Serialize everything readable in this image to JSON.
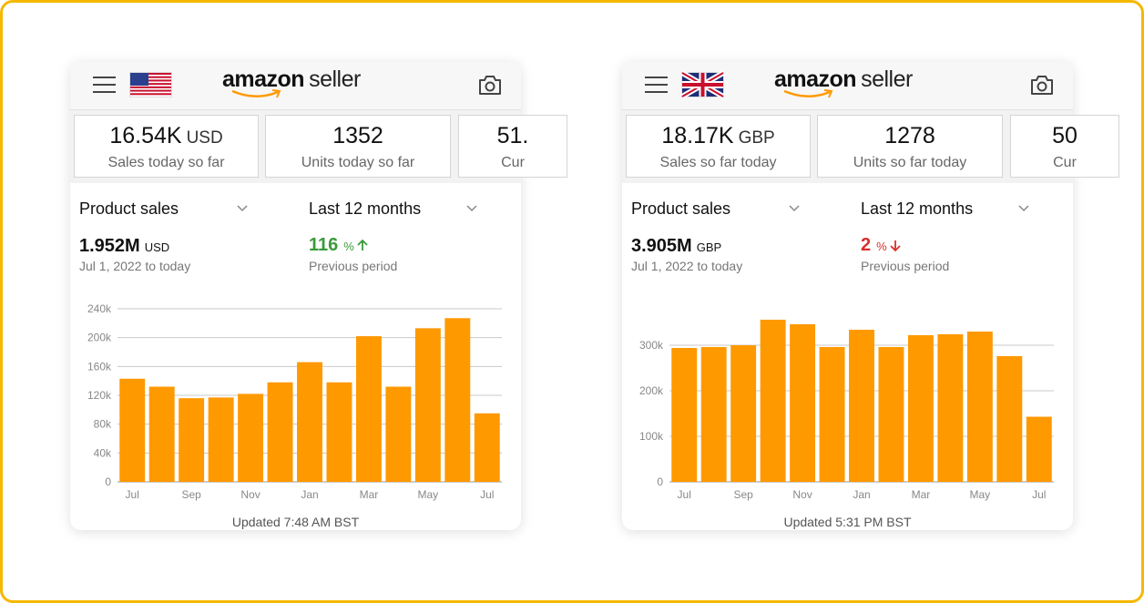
{
  "panels": [
    {
      "logo_brand": "amazon",
      "logo_product": "seller",
      "stats": [
        {
          "value": "16.54K",
          "unit": "USD",
          "label": "Sales today so far"
        },
        {
          "value": "1352",
          "label": "Units today so far"
        },
        {
          "value": "51.",
          "label": "Cur"
        }
      ],
      "metric": "Product sales",
      "period": "Last 12 months",
      "total": {
        "value": "1.952M",
        "unit": "USD",
        "range": "Jul 1, 2022 to today"
      },
      "change": {
        "value": "116",
        "unit": "%",
        "label": "Previous period",
        "color": "#3a9a3a"
      },
      "updated": "Updated 7:48 AM BST"
    },
    {
      "logo_brand": "amazon",
      "logo_product": "seller",
      "stats": [
        {
          "value": "18.17K",
          "unit": "GBP",
          "label": "Sales so far today"
        },
        {
          "value": "1278",
          "label": "Units so far today"
        },
        {
          "value": "50",
          "label": "Cur"
        }
      ],
      "metric": "Product sales",
      "period": "Last 12 months",
      "total": {
        "value": "3.905M",
        "unit": "GBP",
        "range": "Jul 1, 2022 to today"
      },
      "change": {
        "value": "2",
        "unit": "%",
        "label": "Previous period",
        "color": "#d9302c"
      },
      "updated": "Updated 5:31 PM BST"
    }
  ],
  "chart_data": [
    {
      "type": "bar",
      "categories": [
        "Jul",
        null,
        "Sep",
        null,
        "Nov",
        null,
        "Jan",
        null,
        "Mar",
        null,
        "May",
        null,
        "Jul"
      ],
      "values": [
        143000,
        132000,
        116000,
        117000,
        122000,
        138000,
        166000,
        138000,
        202000,
        132000,
        213000,
        227000,
        95000
      ],
      "color": "#ff9900",
      "ylim": [
        0,
        240000
      ],
      "yticks": [
        0,
        {
          "value": 40000,
          "label": "40k"
        },
        {
          "value": 80000,
          "label": "80k"
        },
        {
          "value": 120000,
          "label": "120k"
        },
        {
          "value": 160000,
          "label": "160k"
        },
        {
          "value": 200000,
          "label": "200k"
        },
        {
          "value": 240000,
          "label": "240k"
        }
      ],
      "grid": true
    },
    {
      "type": "bar",
      "categories": [
        "Jul",
        null,
        "Sep",
        null,
        "Nov",
        null,
        "Jan",
        null,
        "Mar",
        null,
        "May",
        null,
        "Jul"
      ],
      "values": [
        294000,
        296000,
        300000,
        356000,
        346000,
        296000,
        334000,
        296000,
        322000,
        324000,
        330000,
        276000,
        143000
      ],
      "color": "#ff9900",
      "ylim": [
        0,
        380000
      ],
      "yticks": [
        0,
        {
          "value": 100000,
          "label": "100k"
        },
        {
          "value": 200000,
          "label": "200k"
        },
        {
          "value": 300000,
          "label": "300k"
        }
      ],
      "grid": true
    }
  ]
}
